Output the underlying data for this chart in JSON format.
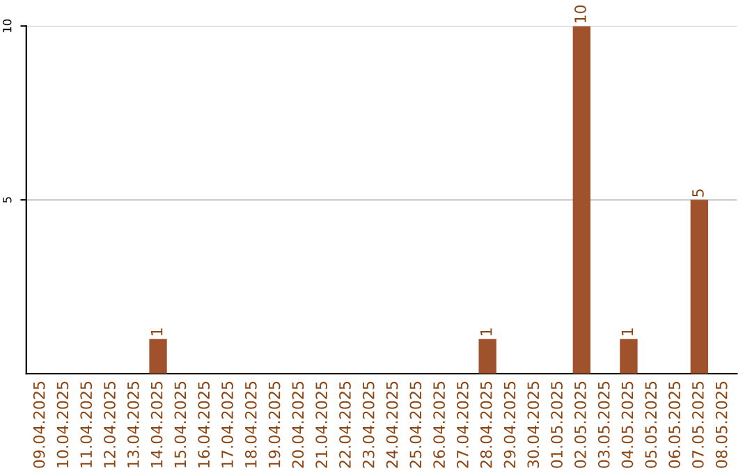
{
  "chart_data": {
    "type": "bar",
    "categories": [
      "09.04.2025",
      "10.04.2025",
      "11.04.2025",
      "12.04.2025",
      "13.04.2025",
      "14.04.2025",
      "15.04.2025",
      "16.04.2025",
      "17.04.2025",
      "18.04.2025",
      "19.04.2025",
      "20.04.2025",
      "21.04.2025",
      "22.04.2025",
      "23.04.2025",
      "24.04.2025",
      "25.04.2025",
      "26.04.2025",
      "27.04.2025",
      "28.04.2025",
      "29.04.2025",
      "30.04.2025",
      "01.05.2025",
      "02.05.2025",
      "03.05.2025",
      "04.05.2025",
      "05.05.2025",
      "06.05.2025",
      "07.05.2025",
      "08.05.2025"
    ],
    "values": [
      0,
      0,
      0,
      0,
      0,
      1,
      0,
      0,
      0,
      0,
      0,
      0,
      0,
      0,
      0,
      0,
      0,
      0,
      0,
      1,
      0,
      0,
      0,
      10,
      0,
      1,
      0,
      0,
      5,
      0
    ],
    "value_labels": [
      null,
      null,
      null,
      null,
      null,
      "1",
      null,
      null,
      null,
      null,
      null,
      null,
      null,
      null,
      null,
      null,
      null,
      null,
      null,
      "1",
      null,
      null,
      null,
      "10",
      null,
      "1",
      null,
      null,
      "5",
      null
    ],
    "color": "#a0522d",
    "ylim": [
      0,
      10
    ],
    "yticks": [
      5,
      10
    ],
    "grid": "y"
  }
}
